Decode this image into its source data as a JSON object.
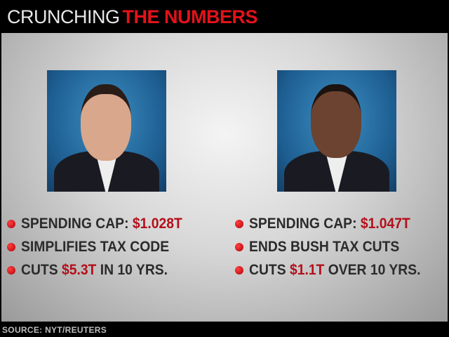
{
  "header": {
    "title_white": "CRUNCHING",
    "title_red": "THE NUMBERS"
  },
  "left": {
    "items": [
      {
        "pre": "SPENDING CAP: ",
        "hl": "$1.028T",
        "post": ""
      },
      {
        "pre": "SIMPLIFIES TAX CODE",
        "hl": "",
        "post": ""
      },
      {
        "pre": "CUTS ",
        "hl": "$5.3T",
        "post": " IN 10 YRS."
      }
    ]
  },
  "right": {
    "items": [
      {
        "pre": "SPENDING CAP: ",
        "hl": "$1.047T",
        "post": ""
      },
      {
        "pre": "ENDS BUSH TAX CUTS",
        "hl": "",
        "post": ""
      },
      {
        "pre": "CUTS ",
        "hl": "$1.1T",
        "post": " OVER 10 YRS."
      }
    ]
  },
  "footer": {
    "source": "SOURCE: NYT/REUTERS"
  },
  "colors": {
    "accent_red": "#e3121a",
    "highlight_red": "#b3101a",
    "photo_bg": "#1d5d90"
  }
}
